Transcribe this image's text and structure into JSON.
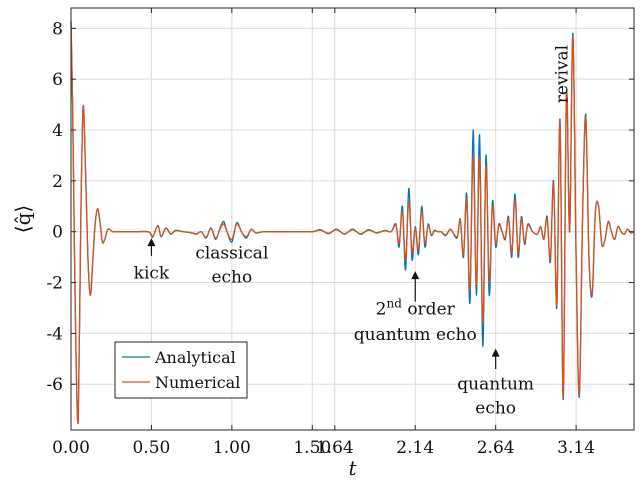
{
  "chart_data": {
    "type": "line",
    "xlabel": "t",
    "ylabel": "⟨q̂⟩",
    "xlim": [
      0,
      3.5
    ],
    "ylim": [
      -7.8,
      8.8
    ],
    "grid": true,
    "legend_position": "bottom-left",
    "x_ticks": [
      0.0,
      0.5,
      1.0,
      1.5,
      1.64,
      2.14,
      2.64,
      3.14
    ],
    "x_tick_labels": [
      "0.00",
      "0.50",
      "1.00",
      "1.50",
      "1.64",
      "2.14",
      "2.64",
      "3.14"
    ],
    "y_ticks": [
      -6,
      -4,
      -2,
      0,
      2,
      4,
      6,
      8
    ],
    "y_tick_labels": [
      "-6",
      "-4",
      "-2",
      "0",
      "2",
      "4",
      "6",
      "8"
    ],
    "series": [
      {
        "name": "Analytical",
        "color": "#0072BD",
        "x": [
          0.0,
          0.01,
          0.02,
          0.03,
          0.045,
          0.06,
          0.075,
          0.09,
          0.105,
          0.12,
          0.135,
          0.15,
          0.165,
          0.18,
          0.195,
          0.21,
          0.23,
          0.26,
          0.3,
          0.4,
          0.48,
          0.5,
          0.51,
          0.54,
          0.56,
          0.59,
          0.62,
          0.65,
          0.7,
          0.75,
          0.78,
          0.81,
          0.84,
          0.87,
          0.9,
          0.93,
          0.95,
          0.97,
          1.0,
          1.03,
          1.06,
          1.09,
          1.12,
          1.15,
          1.2,
          1.3,
          1.4,
          1.5,
          1.55,
          1.6,
          1.65,
          1.7,
          1.75,
          1.8,
          1.85,
          1.9,
          1.95,
          1.99,
          2.02,
          2.04,
          2.06,
          2.08,
          2.1,
          2.12,
          2.14,
          2.16,
          2.18,
          2.2,
          2.22,
          2.24,
          2.26,
          2.28,
          2.3,
          2.33,
          2.36,
          2.4,
          2.42,
          2.44,
          2.46,
          2.48,
          2.5,
          2.52,
          2.54,
          2.56,
          2.58,
          2.6,
          2.62,
          2.64,
          2.66,
          2.68,
          2.7,
          2.72,
          2.74,
          2.76,
          2.78,
          2.8,
          2.82,
          2.84,
          2.87,
          2.9,
          2.92,
          2.94,
          2.96,
          2.98,
          3.0,
          3.02,
          3.04,
          3.06,
          3.08,
          3.1,
          3.12,
          3.14,
          3.16,
          3.18,
          3.2,
          3.22,
          3.24,
          3.26,
          3.28,
          3.3,
          3.32,
          3.34,
          3.36,
          3.38,
          3.4,
          3.42,
          3.44,
          3.46,
          3.48,
          3.5
        ],
        "y": [
          8.3,
          5.0,
          0.0,
          -4.5,
          -7.4,
          0.0,
          4.9,
          2.5,
          -1.0,
          -2.5,
          -1.2,
          0.3,
          0.9,
          0.4,
          -0.4,
          -0.3,
          0.1,
          0.0,
          0.0,
          0.0,
          0.0,
          -0.15,
          -0.2,
          0.25,
          -0.2,
          0.15,
          -0.1,
          0.05,
          0.0,
          -0.05,
          -0.1,
          0.0,
          -0.25,
          0.15,
          -0.3,
          0.2,
          0.4,
          0.0,
          -0.4,
          0.35,
          0.0,
          -0.25,
          0.1,
          -0.05,
          0.0,
          0.0,
          0.0,
          0.0,
          0.08,
          -0.08,
          0.1,
          -0.1,
          0.1,
          -0.1,
          0.08,
          -0.05,
          0.05,
          0.0,
          0.3,
          -0.6,
          1.0,
          -1.5,
          1.7,
          -1.1,
          0.2,
          -0.9,
          1.0,
          -0.6,
          0.3,
          -0.15,
          0.05,
          0.0,
          0.0,
          -0.15,
          0.1,
          -0.25,
          0.5,
          -1.0,
          1.5,
          -2.8,
          4.0,
          -2.5,
          3.8,
          -4.5,
          3.0,
          -2.5,
          1.2,
          -0.6,
          0.3,
          0.0,
          -0.3,
          0.6,
          -1.0,
          1.5,
          -1.0,
          0.6,
          -0.5,
          0.3,
          0.0,
          -0.1,
          0.2,
          -0.3,
          0.6,
          -1.2,
          2.0,
          -3.0,
          4.4,
          -6.6,
          5.5,
          0.0,
          7.8,
          -1.0,
          -6.5,
          0.5,
          4.6,
          -1.0,
          -2.5,
          0.8,
          1.0,
          -0.5,
          -0.3,
          0.4,
          0.0,
          -0.3,
          0.2,
          0.0,
          -0.1,
          0.1,
          -0.05,
          0.0
        ]
      },
      {
        "name": "Numerical",
        "color": "#D95319",
        "x": [
          0.0,
          0.01,
          0.02,
          0.03,
          0.045,
          0.06,
          0.075,
          0.09,
          0.105,
          0.12,
          0.135,
          0.15,
          0.165,
          0.18,
          0.195,
          0.21,
          0.23,
          0.26,
          0.3,
          0.4,
          0.48,
          0.5,
          0.51,
          0.54,
          0.56,
          0.59,
          0.62,
          0.65,
          0.7,
          0.75,
          0.78,
          0.81,
          0.84,
          0.87,
          0.9,
          0.93,
          0.95,
          0.97,
          1.0,
          1.03,
          1.06,
          1.09,
          1.12,
          1.15,
          1.2,
          1.3,
          1.4,
          1.5,
          1.55,
          1.6,
          1.65,
          1.7,
          1.75,
          1.8,
          1.85,
          1.9,
          1.95,
          1.99,
          2.02,
          2.04,
          2.06,
          2.08,
          2.1,
          2.12,
          2.14,
          2.16,
          2.18,
          2.2,
          2.22,
          2.24,
          2.26,
          2.28,
          2.3,
          2.33,
          2.36,
          2.4,
          2.42,
          2.44,
          2.46,
          2.48,
          2.5,
          2.52,
          2.54,
          2.56,
          2.58,
          2.6,
          2.62,
          2.64,
          2.66,
          2.68,
          2.7,
          2.72,
          2.74,
          2.76,
          2.78,
          2.8,
          2.82,
          2.84,
          2.87,
          2.9,
          2.92,
          2.94,
          2.96,
          2.98,
          3.0,
          3.02,
          3.04,
          3.06,
          3.08,
          3.1,
          3.12,
          3.14,
          3.16,
          3.18,
          3.2,
          3.22,
          3.24,
          3.26,
          3.28,
          3.3,
          3.32,
          3.34,
          3.36,
          3.38,
          3.4,
          3.42,
          3.44,
          3.46,
          3.48,
          3.5
        ],
        "y": [
          8.3,
          5.0,
          0.0,
          -4.5,
          -7.4,
          0.0,
          4.9,
          2.5,
          -1.0,
          -2.5,
          -1.2,
          0.3,
          0.9,
          0.4,
          -0.4,
          -0.3,
          0.1,
          0.0,
          0.0,
          0.0,
          0.0,
          -0.12,
          -0.18,
          0.22,
          -0.18,
          0.13,
          -0.08,
          0.04,
          0.0,
          -0.04,
          -0.08,
          0.0,
          -0.22,
          0.12,
          -0.25,
          0.15,
          0.3,
          0.0,
          -0.3,
          0.3,
          0.0,
          -0.2,
          0.08,
          -0.04,
          0.0,
          0.0,
          0.0,
          0.0,
          0.06,
          -0.06,
          0.08,
          -0.08,
          0.08,
          -0.08,
          0.06,
          -0.04,
          0.04,
          0.0,
          0.25,
          -0.45,
          0.8,
          -1.1,
          1.2,
          -0.8,
          0.15,
          -0.7,
          0.8,
          -0.45,
          0.25,
          -0.12,
          0.04,
          0.0,
          0.0,
          -0.12,
          0.08,
          -0.2,
          0.45,
          -0.9,
          1.3,
          -2.3,
          3.0,
          -2.1,
          2.9,
          -3.6,
          2.6,
          -2.0,
          1.0,
          -0.5,
          0.25,
          0.0,
          -0.25,
          0.5,
          -0.85,
          1.3,
          -0.85,
          0.5,
          -0.4,
          0.25,
          0.0,
          -0.1,
          0.2,
          -0.3,
          0.55,
          -1.1,
          1.9,
          -2.9,
          4.3,
          -6.5,
          5.4,
          0.0,
          7.7,
          -1.0,
          -6.4,
          0.5,
          4.5,
          -1.0,
          -2.4,
          0.8,
          1.0,
          -0.5,
          -0.3,
          0.4,
          0.0,
          -0.3,
          0.2,
          0.0,
          -0.1,
          0.1,
          -0.05,
          0.0
        ]
      }
    ],
    "annotations": [
      {
        "lines": [
          "kick"
        ],
        "x": 0.5,
        "y": -1.45
      },
      {
        "lines": [
          "classical",
          "echo"
        ],
        "x": 1.0,
        "y": -1.2
      },
      {
        "lines": [
          "2nd order",
          "quantum echo"
        ],
        "x": 2.14,
        "y": -3.4
      },
      {
        "lines": [
          "quantum",
          "echo"
        ],
        "x": 2.64,
        "y": -5.9
      },
      {
        "lines": [
          "revival"
        ],
        "x": 3.14,
        "y": 6.0
      }
    ],
    "annotation_texts": {
      "kick": "kick",
      "classical_1": "classical",
      "classical_2": "echo",
      "second_order_num": "2",
      "second_order_sup": "nd",
      "second_order_rest": " order",
      "quantum_echo_1": "quantum echo",
      "quantum_1": "quantum",
      "quantum_2": "echo",
      "revival": "revival"
    }
  }
}
